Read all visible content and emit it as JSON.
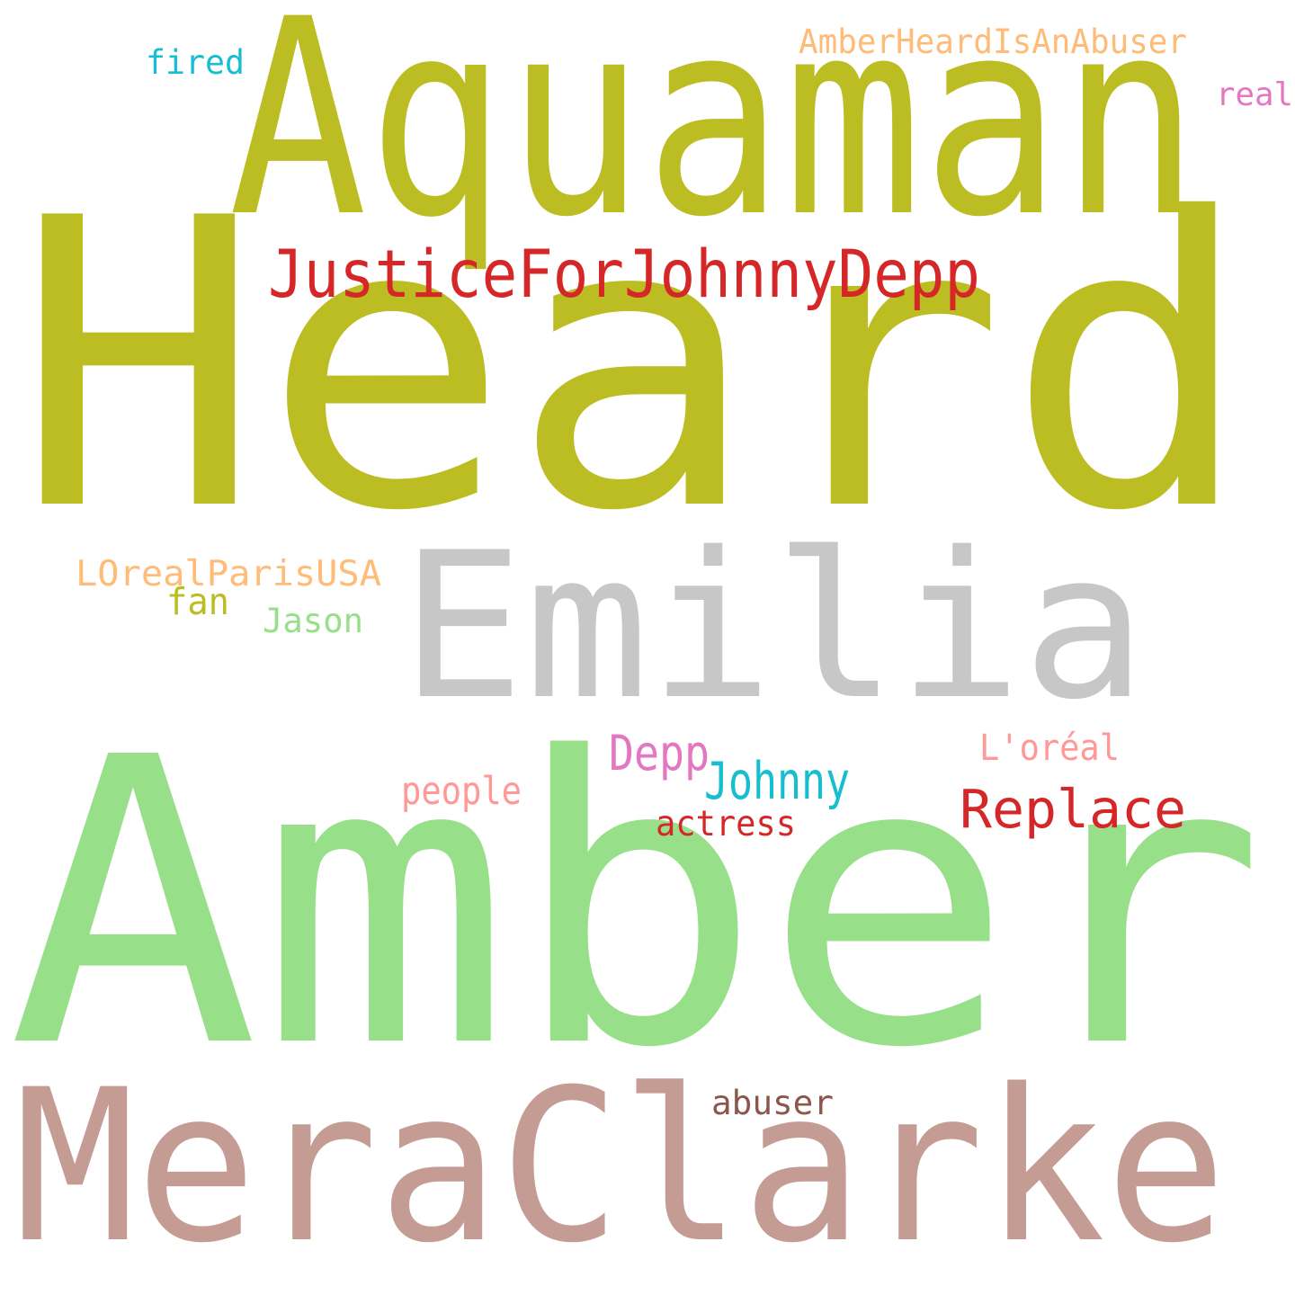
{
  "words": [
    {
      "id": "heard",
      "text": "Heard",
      "color": "#bcbd22"
    },
    {
      "id": "amber",
      "text": "Amber",
      "color": "#98df8a"
    },
    {
      "id": "aquaman",
      "text": "Aquaman",
      "color": "#bcbd22"
    },
    {
      "id": "emilia",
      "text": "Emilia",
      "color": "#c7c7c7"
    },
    {
      "id": "meraclarke",
      "text": "MeraClarke",
      "color": "#c49c94"
    },
    {
      "id": "justicefor",
      "text": "JusticeForJohnnyDepp",
      "color": "#d62728"
    },
    {
      "id": "replace",
      "text": "Replace",
      "color": "#d62728"
    },
    {
      "id": "johnny",
      "text": "Johnny",
      "color": "#17becf"
    },
    {
      "id": "depp",
      "text": "Depp",
      "color": "#e377c2"
    },
    {
      "id": "actress",
      "text": "actress",
      "color": "#d62728"
    },
    {
      "id": "people",
      "text": "people",
      "color": "#ff9896"
    },
    {
      "id": "loreal",
      "text": "L'oréal",
      "color": "#ff9896"
    },
    {
      "id": "abuser",
      "text": "abuser",
      "color": "#8c564b"
    },
    {
      "id": "lorealparisusa",
      "text": "LOrealParisUSA",
      "color": "#ffbb78"
    },
    {
      "id": "fan",
      "text": "fan",
      "color": "#bcbd22"
    },
    {
      "id": "jason",
      "text": "Jason",
      "color": "#98df8a"
    },
    {
      "id": "amberheardisanabuser",
      "text": "AmberHeardIsAnAbuser",
      "color": "#ffbb78"
    },
    {
      "id": "fired",
      "text": "fired",
      "color": "#17becf"
    },
    {
      "id": "real",
      "text": "real",
      "color": "#e377c2"
    }
  ]
}
